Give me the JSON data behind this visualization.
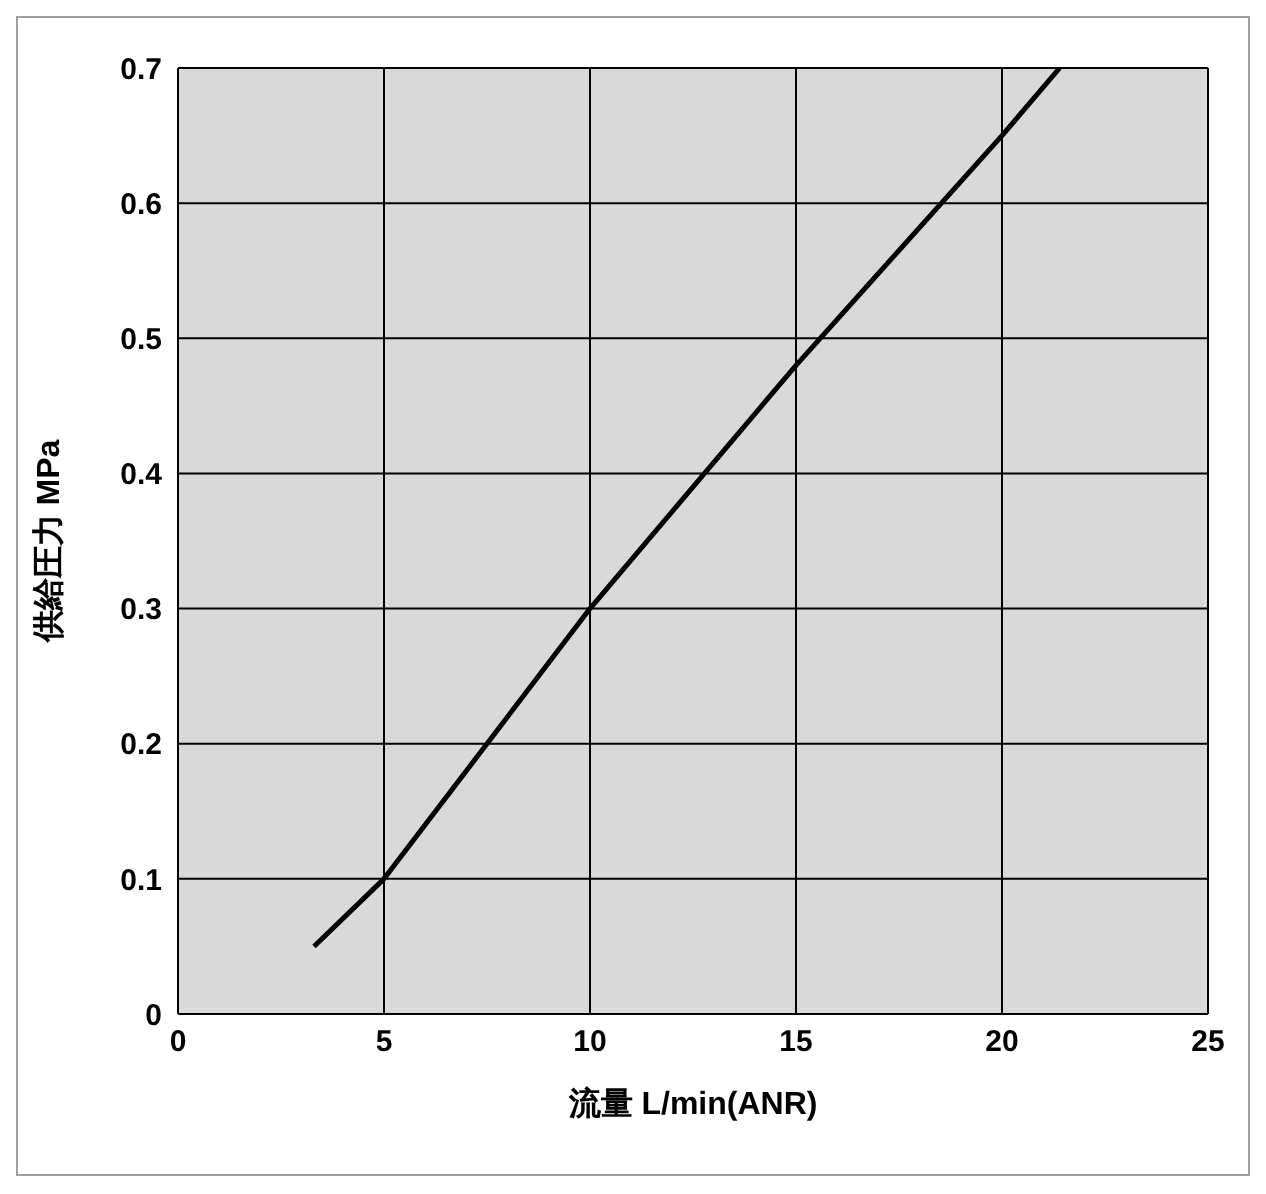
{
  "chart_data": {
    "type": "line",
    "xlabel": "流量 L/min(ANR)",
    "ylabel": "供給圧力 MPa",
    "x": [
      3.3,
      5,
      10,
      15,
      20,
      21.4
    ],
    "series": [
      {
        "color": "#000000",
        "values": [
          0.05,
          0.1,
          0.3,
          0.48,
          0.65,
          0.7
        ]
      }
    ],
    "xlim": [
      0,
      25
    ],
    "xticks": [
      0,
      5,
      10,
      15,
      20,
      25
    ],
    "ylim": [
      0,
      0.7
    ],
    "yticks": [
      0,
      0.1,
      0.2,
      0.3,
      0.4,
      0.5,
      0.6,
      0.7
    ],
    "grid": true,
    "legend": false,
    "marker": "none",
    "line_style": "solid"
  }
}
